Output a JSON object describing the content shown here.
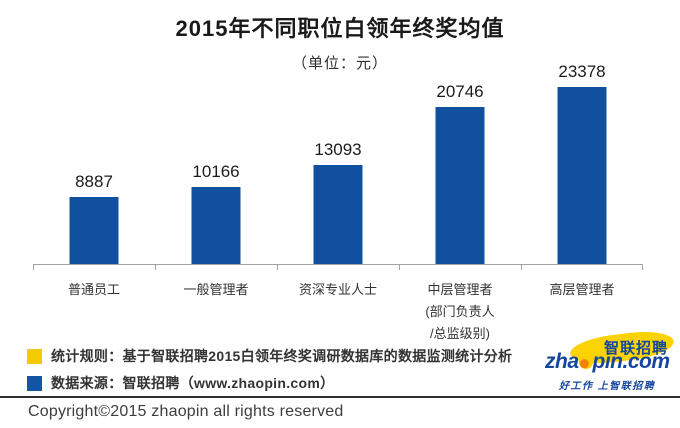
{
  "header": {
    "title": "2015年不同职位白领年终奖均值",
    "subtitle": "（单位：元）"
  },
  "chart_data": {
    "type": "bar",
    "title": "2015年不同职位白领年终奖均值",
    "unit_label": "（单位：元）",
    "categories": [
      "普通员工",
      "一般管理者",
      "资深专业人士",
      "中层管理者\n(部门负责人\n/总监级别)",
      "高层管理者"
    ],
    "values": [
      8887,
      10166,
      13093,
      20746,
      23378
    ],
    "ylim": [
      0,
      23378
    ],
    "grid": false,
    "data_labels": true,
    "bar_color": "#11509E",
    "axis_color": "#a3a3a3",
    "legend_position": "bottom-left"
  },
  "legend": {
    "items": [
      {
        "color": "#F2CB05",
        "label": "统计规则：基于智联招聘2015白领年终奖调研数据库的数据监测统计分析"
      },
      {
        "color": "#1157A6",
        "label": "数据来源：智联招聘（www.zhaopin.com）"
      }
    ]
  },
  "logo": {
    "brand_cn": "智联招聘",
    "brand_en_prefix": "zha",
    "brand_en_suffix": "pin.com",
    "tagline": "好工作 上智联招聘",
    "brand_blue": "#14469F",
    "brand_yellow": "#FBD303"
  },
  "footer": {
    "copyright": "Copyright©2015 zhaopin all rights reserved"
  }
}
